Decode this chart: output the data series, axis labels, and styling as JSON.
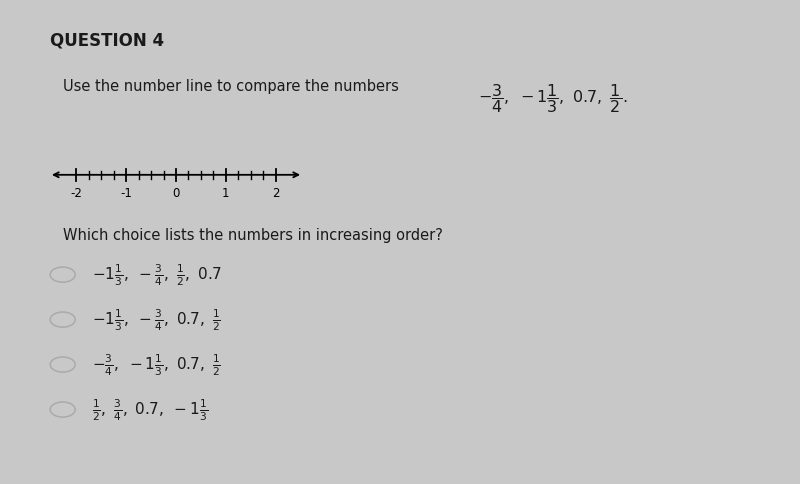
{
  "background_color": "#c8c8c8",
  "panel_color": "#f5f5f5",
  "title": "QUESTION 4",
  "title_fontsize": 12,
  "title_fontweight": "bold",
  "intro_text": "Use the number line to compare the numbers",
  "question_text": "Which choice lists the numbers in increasing order?",
  "number_line_ticks_major": [
    -2,
    -1,
    0,
    1,
    2
  ],
  "number_line_ticks_minor": [
    -1.75,
    -1.5,
    -1.25,
    -0.75,
    -0.5,
    -0.25,
    0.25,
    0.5,
    0.75,
    1.25,
    1.5,
    1.75
  ],
  "choice_texts_latex": [
    "$-1\\frac{1}{3}, -\\frac{3}{4}, \\frac{1}{2}, 0.7$",
    "$-1\\frac{1}{3}, -\\frac{3}{4}, 0.7, \\frac{1}{2}$",
    "$-\\frac{3}{4}, -1\\frac{1}{3}, 0.7, \\frac{1}{2}$",
    "$\\frac{1}{2}, \\frac{3}{4}, 0.7, -1\\frac{1}{3}$"
  ],
  "text_color": "#1a1a1a",
  "circle_color": "#aaaaaa",
  "choice_fontsize": 11
}
